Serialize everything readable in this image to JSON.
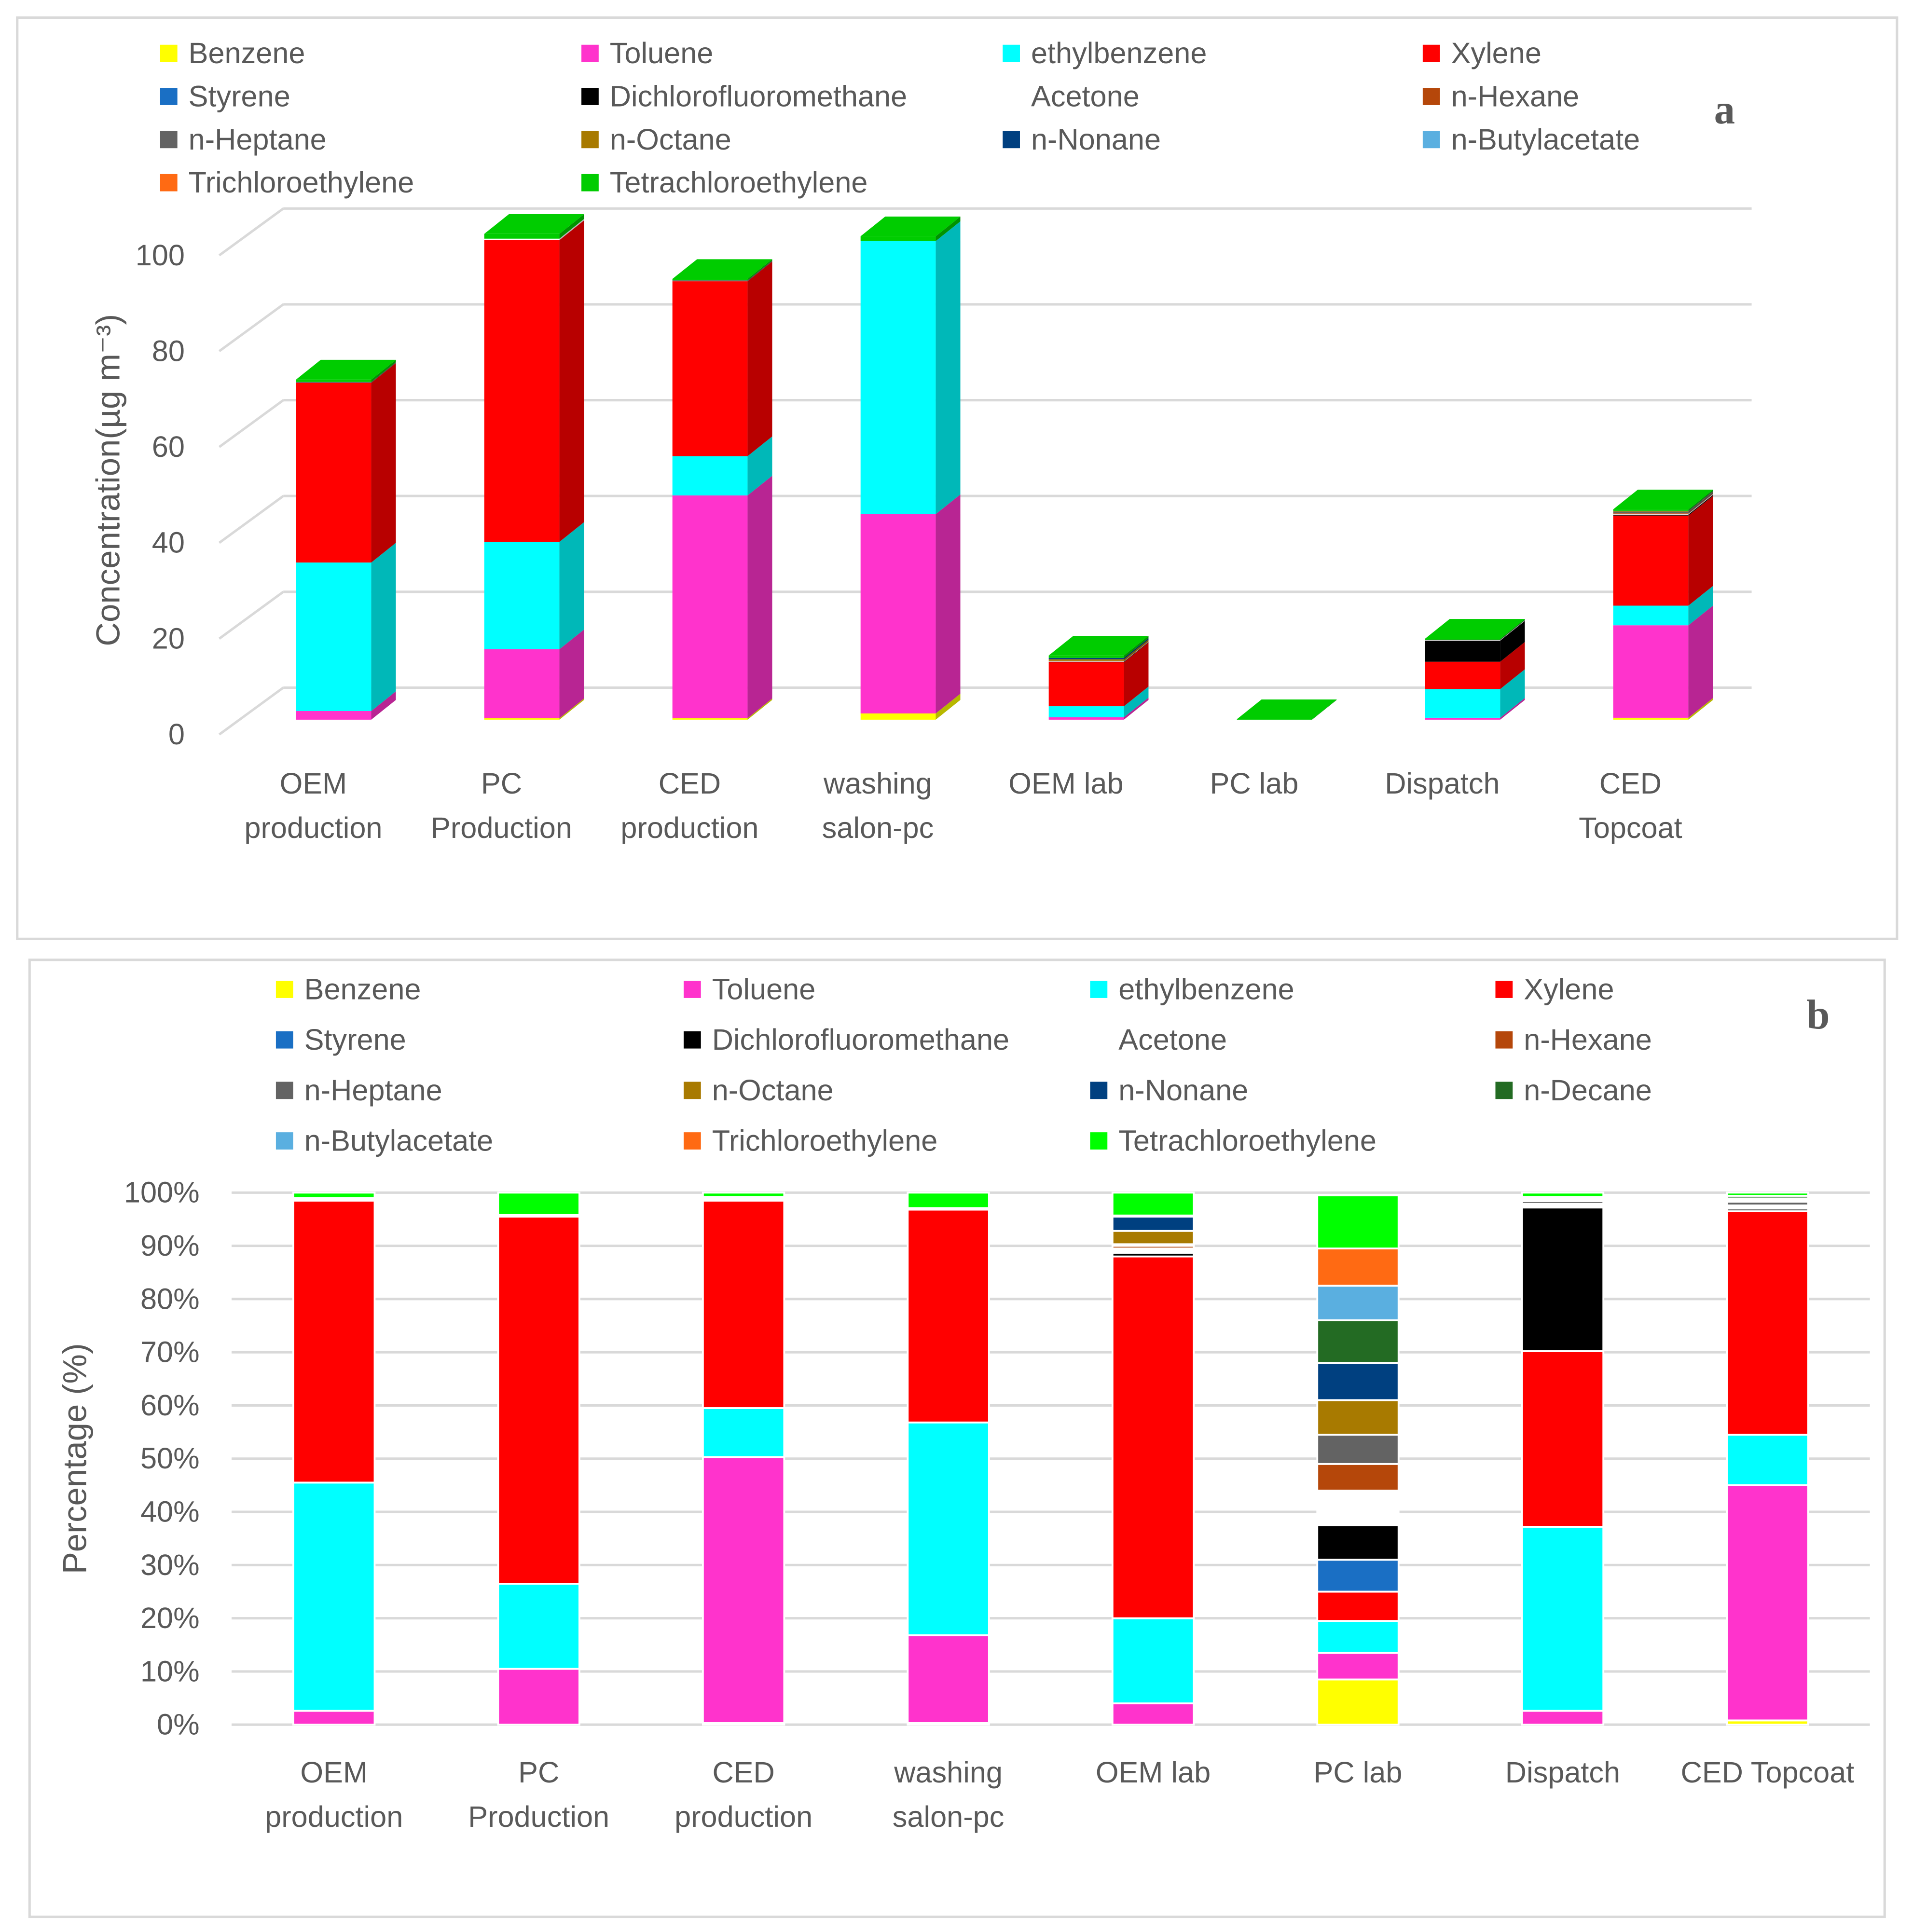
{
  "chart_data": [
    {
      "type": "bar",
      "stacked": true,
      "three_d": true,
      "title": "a",
      "y_label": "Concentration(µg m⁻³)",
      "categories": [
        [
          "OEM",
          "production"
        ],
        [
          "PC",
          "Production"
        ],
        [
          "CED",
          "production"
        ],
        [
          "washing",
          "salon-pc"
        ],
        [
          "OEM lab"
        ],
        [
          "PC lab"
        ],
        [
          "Dispatch"
        ],
        [
          "CED",
          "Topcoat"
        ]
      ],
      "ylim": [
        0,
        100
      ],
      "yticks": [
        0,
        20,
        40,
        60,
        80,
        100
      ],
      "grid": true,
      "series": [
        {
          "name": "Benzene",
          "color": "#ffff00",
          "values": [
            0,
            0.3,
            0.3,
            1.3,
            0,
            0,
            0,
            0.4
          ]
        },
        {
          "name": "Toluene",
          "color": "#ff33cc",
          "values": [
            1.8,
            14.4,
            46.5,
            41.6,
            0.5,
            0,
            0.4,
            19.3
          ]
        },
        {
          "name": "ethylbenzene",
          "color": "#00ffff",
          "values": [
            31,
            22.4,
            8.2,
            57,
            2.3,
            0,
            6,
            4.1
          ]
        },
        {
          "name": "Xylene",
          "color": "#ff0000",
          "values": [
            37.5,
            63,
            36.5,
            0,
            9.2,
            0,
            5.7,
            18.8
          ]
        },
        {
          "name": "Styrene",
          "color": "#1a6fc4",
          "values": [
            0,
            0,
            0,
            0,
            0,
            0,
            0,
            0
          ]
        },
        {
          "name": "Dichlorofluoromethane",
          "color": "#000000",
          "values": [
            0,
            0,
            0,
            0,
            0.1,
            0,
            4.4,
            0.2
          ]
        },
        {
          "name": "Acetone",
          "color": "#ffffff",
          "values": [
            0,
            0.3,
            0,
            0,
            0.1,
            0,
            0.1,
            0.2
          ]
        },
        {
          "name": "n-Hexane",
          "color": "#b5470a",
          "values": [
            0,
            0,
            0,
            0,
            0.1,
            0,
            0,
            0.1
          ]
        },
        {
          "name": "n-Heptane",
          "color": "#636363",
          "values": [
            0.2,
            0,
            0.2,
            0,
            0,
            0,
            0.1,
            0.3
          ]
        },
        {
          "name": "n-Octane",
          "color": "#a87a00",
          "values": [
            0,
            0,
            0,
            0,
            0.3,
            0,
            0,
            0.1
          ]
        },
        {
          "name": "n-Nonane",
          "color": "#004080",
          "values": [
            0,
            0,
            0,
            0,
            0.3,
            0,
            0,
            0.1
          ]
        },
        {
          "name": "n-Butylacetate",
          "color": "#5aafe0",
          "values": [
            0,
            0,
            0,
            0,
            0,
            0,
            0,
            0
          ]
        },
        {
          "name": "Trichloroethylene",
          "color": "#ff6a13",
          "values": [
            0,
            0,
            0,
            0,
            0,
            0,
            0,
            0
          ]
        },
        {
          "name": "Tetrachloroethylene",
          "color": "#00cc00",
          "values": [
            0.5,
            1,
            0.3,
            1,
            0.5,
            0.1,
            0.2,
            0.3
          ]
        }
      ]
    },
    {
      "type": "bar",
      "stacked": true,
      "three_d": false,
      "title": "b",
      "y_label": "Percentage (%)",
      "categories": [
        [
          "OEM",
          "production"
        ],
        [
          "PC",
          "Production"
        ],
        [
          "CED",
          "production"
        ],
        [
          "washing",
          "salon-pc"
        ],
        [
          "OEM lab"
        ],
        [
          "PC lab"
        ],
        [
          "Dispatch"
        ],
        [
          "CED Topcoat"
        ]
      ],
      "ylim": [
        0,
        100
      ],
      "yticks": [
        {
          "value": 0,
          "label": "0%"
        },
        {
          "value": 10,
          "label": "10%"
        },
        {
          "value": 20,
          "label": "20%"
        },
        {
          "value": 30,
          "label": "30%"
        },
        {
          "value": 40,
          "label": "40%"
        },
        {
          "value": 50,
          "label": "50%"
        },
        {
          "value": 60,
          "label": "60%"
        },
        {
          "value": 70,
          "label": "70%"
        },
        {
          "value": 80,
          "label": "80%"
        },
        {
          "value": 90,
          "label": "90%"
        },
        {
          "value": 100,
          "label": "100%"
        }
      ],
      "grid": true,
      "series": [
        {
          "name": "Benzene",
          "color": "#ffff00",
          "values": [
            0,
            0,
            0.3,
            0.3,
            0,
            8.5,
            0,
            0.8
          ]
        },
        {
          "name": "Toluene",
          "color": "#ff33cc",
          "values": [
            2.6,
            10.5,
            50,
            16.5,
            4,
            5,
            2.6,
            44.2
          ]
        },
        {
          "name": "ethylbenzene",
          "color": "#00ffff",
          "values": [
            42.9,
            16,
            9.2,
            40,
            16,
            6,
            34.6,
            9.5
          ]
        },
        {
          "name": "Xylene",
          "color": "#ff0000",
          "values": [
            53,
            69,
            39,
            40,
            68,
            5.5,
            33,
            42
          ]
        },
        {
          "name": "Styrene",
          "color": "#1a6fc4",
          "values": [
            0,
            0,
            0,
            0,
            0,
            6,
            0,
            0
          ]
        },
        {
          "name": "Dichlorofluoromethane",
          "color": "#000000",
          "values": [
            0,
            0,
            0,
            0,
            0.7,
            6.5,
            27,
            0.5
          ]
        },
        {
          "name": "Acetone",
          "color": "#ffffff",
          "values": [
            0,
            0.3,
            0,
            0.2,
            0.8,
            6.5,
            0.5,
            0.4
          ]
        },
        {
          "name": "n-Hexane",
          "color": "#b5470a",
          "values": [
            0,
            0,
            0.2,
            0,
            0.5,
            5,
            0.2,
            0.2
          ]
        },
        {
          "name": "n-Heptane",
          "color": "#636363",
          "values": [
            0.3,
            0,
            0.3,
            0.1,
            0.3,
            5.5,
            0.5,
            0.7
          ]
        },
        {
          "name": "n-Octane",
          "color": "#a87a00",
          "values": [
            0,
            0,
            0,
            0,
            2.5,
            6.5,
            0.3,
            0.3
          ]
        },
        {
          "name": "n-Nonane",
          "color": "#004080",
          "values": [
            0,
            0,
            0,
            0,
            2.7,
            7,
            0.3,
            0.3
          ]
        },
        {
          "name": "n-Decane",
          "color": "#236b23",
          "values": [
            0.2,
            0,
            0.2,
            0,
            0.2,
            8,
            0.2,
            0.5
          ]
        },
        {
          "name": "n-Butylacetate",
          "color": "#5aafe0",
          "values": [
            0,
            0,
            0,
            0,
            0,
            6.5,
            0,
            0
          ]
        },
        {
          "name": "Trichloroethylene",
          "color": "#ff6a13",
          "values": [
            0,
            0,
            0,
            0,
            0,
            7,
            0,
            0
          ]
        },
        {
          "name": "Tetrachloroethylene",
          "color": "#00ff00",
          "values": [
            1,
            4.2,
            0.8,
            2.9,
            4.3,
            10,
            0.8,
            0.6
          ]
        }
      ]
    }
  ]
}
